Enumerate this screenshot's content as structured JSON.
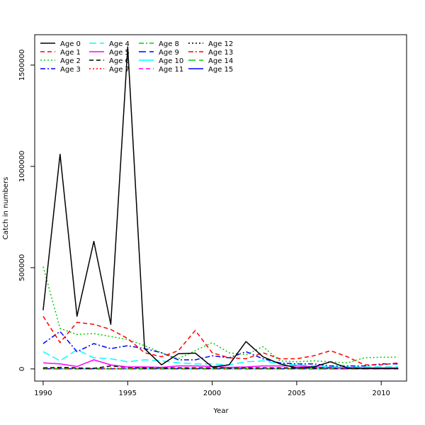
{
  "chart_data": {
    "type": "line",
    "title": "",
    "xlabel": "Year",
    "ylabel": "Catch in numbers",
    "xlim": [
      1989.5,
      2011.5
    ],
    "ylim": [
      -60000,
      1650000
    ],
    "x_ticks": [
      1990,
      1995,
      2000,
      2005,
      2010
    ],
    "x_tick_labels": [
      "1990",
      "1995",
      "2000",
      "2005",
      "2010"
    ],
    "y_ticks": [
      0,
      500000,
      1000000,
      1500000
    ],
    "y_tick_labels": [
      "0",
      "500000",
      "1000000",
      "1500000"
    ],
    "grid": false,
    "legend_position": "top-left",
    "x": [
      1990,
      1991,
      1992,
      1993,
      1994,
      1995,
      1996,
      1997,
      1998,
      1999,
      2000,
      2001,
      2002,
      2003,
      2004,
      2005,
      2006,
      2007,
      2008,
      2009,
      2010,
      2011
    ],
    "series": [
      {
        "name": "Age 0",
        "color": "#000000",
        "dash": "",
        "values": [
          290000,
          1060000,
          260000,
          630000,
          220000,
          1590000,
          100000,
          20000,
          75000,
          78000,
          10000,
          20000,
          135000,
          60000,
          25000,
          5000,
          10000,
          35000,
          5000,
          3000,
          2000,
          2000
        ]
      },
      {
        "name": "Age 1",
        "color": "#ff0000",
        "dash": "6,4",
        "values": [
          260000,
          130000,
          230000,
          220000,
          195000,
          150000,
          80000,
          60000,
          90000,
          190000,
          80000,
          55000,
          50000,
          80000,
          50000,
          50000,
          65000,
          90000,
          60000,
          20000,
          20000,
          30000
        ]
      },
      {
        "name": "Age 2",
        "color": "#00cd00",
        "dash": "2,3",
        "values": [
          505000,
          200000,
          170000,
          175000,
          160000,
          145000,
          115000,
          80000,
          50000,
          90000,
          130000,
          80000,
          70000,
          110000,
          40000,
          35000,
          40000,
          35000,
          30000,
          55000,
          58000,
          58000
        ]
      },
      {
        "name": "Age 3",
        "color": "#0000ff",
        "dash": "7,3,2,3",
        "values": [
          125000,
          185000,
          85000,
          125000,
          100000,
          115000,
          100000,
          80000,
          45000,
          45000,
          65000,
          55000,
          85000,
          50000,
          30000,
          25000,
          25000,
          15000,
          15000,
          15000,
          25000,
          25000
        ]
      },
      {
        "name": "Age 4",
        "color": "#00ffff",
        "dash": "10,5",
        "values": [
          85000,
          40000,
          95000,
          55000,
          50000,
          35000,
          45000,
          40000,
          30000,
          25000,
          25000,
          20000,
          35000,
          40000,
          25000,
          20000,
          15000,
          10000,
          10000,
          10000,
          10000,
          10000
        ]
      },
      {
        "name": "Age 5",
        "color": "#ff00ff",
        "dash": "",
        "values": [
          30000,
          25000,
          12000,
          45000,
          20000,
          10000,
          10000,
          8000,
          15000,
          15000,
          12000,
          8000,
          10000,
          15000,
          15000,
          15000,
          10000,
          8000,
          5000,
          5000,
          5000,
          5000
        ]
      },
      {
        "name": "Age 6",
        "color": "#000000",
        "dash": "6,4",
        "values": [
          5000,
          8000,
          5000,
          3000,
          15000,
          8000,
          5000,
          5000,
          5000,
          5000,
          5000,
          5000,
          5000,
          5000,
          5000,
          5000,
          5000,
          5000,
          3000,
          3000,
          3000,
          3000
        ]
      },
      {
        "name": "Age 7",
        "color": "#ff0000",
        "dash": "2,3",
        "values": [
          3000,
          3000,
          3000,
          3000,
          3000,
          3000,
          3000,
          3000,
          3000,
          3000,
          3000,
          3000,
          3000,
          3000,
          3000,
          3000,
          3000,
          3000,
          2000,
          2000,
          2000,
          2000
        ]
      },
      {
        "name": "Age 8",
        "color": "#00cd00",
        "dash": "7,3,2,3",
        "values": [
          2000,
          2000,
          2000,
          2000,
          2000,
          2000,
          2000,
          2000,
          2000,
          2000,
          2000,
          2000,
          2000,
          2000,
          2000,
          2000,
          2000,
          2000,
          2000,
          2000,
          2000,
          2000
        ]
      },
      {
        "name": "Age 9",
        "color": "#0000ff",
        "dash": "10,5",
        "values": [
          1000,
          1000,
          1000,
          1000,
          1000,
          1000,
          1000,
          1000,
          1000,
          1000,
          1000,
          1000,
          1000,
          1000,
          1000,
          1000,
          1000,
          1000,
          1000,
          1000,
          1000,
          1000
        ]
      },
      {
        "name": "Age 10",
        "color": "#00ffff",
        "dash": "",
        "values": [
          1000,
          1000,
          1000,
          1000,
          1000,
          1000,
          1000,
          1000,
          1000,
          1000,
          1000,
          1000,
          1000,
          1000,
          1000,
          1000,
          1000,
          1000,
          1000,
          1000,
          1000,
          1000
        ]
      },
      {
        "name": "Age 11",
        "color": "#ff00ff",
        "dash": "6,4",
        "values": [
          500,
          500,
          500,
          500,
          500,
          500,
          500,
          500,
          500,
          500,
          500,
          500,
          500,
          500,
          500,
          500,
          500,
          500,
          500,
          500,
          500,
          500
        ]
      },
      {
        "name": "Age 12",
        "color": "#000000",
        "dash": "2,3",
        "values": [
          500,
          500,
          500,
          500,
          500,
          500,
          500,
          500,
          500,
          500,
          500,
          500,
          500,
          500,
          500,
          500,
          500,
          500,
          500,
          500,
          500,
          500
        ]
      },
      {
        "name": "Age 13",
        "color": "#ff0000",
        "dash": "7,3,2,3",
        "values": [
          300,
          300,
          300,
          300,
          300,
          300,
          300,
          300,
          300,
          300,
          300,
          300,
          300,
          300,
          300,
          300,
          300,
          300,
          300,
          300,
          300,
          300
        ]
      },
      {
        "name": "Age 14",
        "color": "#00cd00",
        "dash": "10,5",
        "values": [
          200,
          200,
          200,
          200,
          200,
          200,
          200,
          200,
          200,
          200,
          200,
          200,
          200,
          200,
          200,
          200,
          200,
          200,
          200,
          200,
          200,
          200
        ]
      },
      {
        "name": "Age 15",
        "color": "#0000ff",
        "dash": "",
        "values": [
          100,
          100,
          100,
          100,
          100,
          100,
          100,
          100,
          100,
          100,
          100,
          100,
          100,
          100,
          100,
          100,
          100,
          100,
          100,
          100,
          100,
          100
        ]
      }
    ]
  }
}
